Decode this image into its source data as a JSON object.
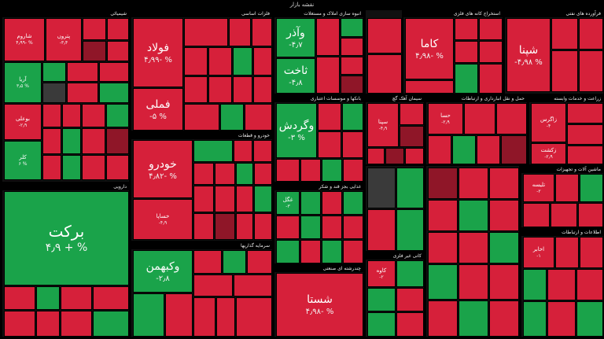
{
  "page_title": "نقشه بازار",
  "colors": {
    "red": "#d6203a",
    "dark_red": "#8f1628",
    "green": "#1aa34a",
    "light_green": "#2fbf5d",
    "gray": "#3a3a3a"
  },
  "sectors": [
    {
      "key": "s1",
      "label": "شیمیائی",
      "tiles": [
        {
          "name": "شاروم",
          "pct": "۴٫۹۹- %",
          "c": "red"
        },
        {
          "name": "پتروں",
          "pct": "-۳٫۴",
          "c": "red"
        },
        {
          "name": "آریا",
          "pct": "۳٫۵ %",
          "c": "green"
        },
        {
          "name": "بوعلی",
          "pct": "-۲٫۹",
          "c": "red"
        },
        {
          "name": "کلر",
          "pct": "۶ %",
          "c": "green"
        }
      ]
    },
    {
      "key": "s2",
      "label": "دارویی",
      "tiles": [
        {
          "name": "برکت",
          "pct": "۴٫۹ + %",
          "c": "green"
        }
      ]
    },
    {
      "key": "s3",
      "label": "فلزات اساسی",
      "tiles": [
        {
          "name": "فولاد",
          "pct": "۴٫۹۹- %",
          "c": "red"
        },
        {
          "name": "فملی",
          "pct": "-۵ %",
          "c": "red"
        }
      ]
    },
    {
      "key": "s4",
      "label": "خودرو و قطعات",
      "tiles": [
        {
          "name": "خودرو",
          "pct": "۴٫۸۲- %",
          "c": "red"
        },
        {
          "name": "خساپا",
          "pct": "-۴٫۹",
          "c": "red"
        }
      ]
    },
    {
      "key": "s5",
      "label": "سرمایه گذاریها",
      "tiles": [
        {
          "name": "وکبهمن",
          "pct": "-۲٫۸",
          "c": "green"
        }
      ]
    },
    {
      "key": "s6",
      "label": "انبوه سازی املاک و مستغلات",
      "tiles": [
        {
          "name": "وآذر",
          "pct": "-۴٫۷",
          "c": "green"
        },
        {
          "name": "ثاخت",
          "pct": "-۴٫۸",
          "c": "green"
        }
      ]
    },
    {
      "key": "s7",
      "label": "بانکها و موسسات اعتباری",
      "tiles": [
        {
          "name": "وگردش",
          "pct": "-۳ %",
          "c": "green"
        }
      ]
    },
    {
      "key": "s8",
      "label": "چندرشته ای صنعتی",
      "tiles": [
        {
          "name": "شستا",
          "pct": "۴٫۹۸- %",
          "c": "red"
        }
      ]
    },
    {
      "key": "s9",
      "label": "استخراج کانه های فلزی",
      "tiles": [
        {
          "name": "کاما",
          "pct": "۴٫۹۸- %",
          "c": "red"
        }
      ]
    },
    {
      "key": "s10",
      "label": "فرآورده های نفتی",
      "tiles": [
        {
          "name": "شپنا",
          "pct": "-۴٫۹۸ %",
          "c": "red"
        }
      ]
    },
    {
      "key": "s11",
      "label": "سیمان آهک گچ",
      "tiles": [
        {
          "name": "سپنا",
          "pct": "-۴٫۹",
          "c": "red"
        }
      ]
    },
    {
      "key": "s12",
      "label": "حمل و نقل انبارداری و ارتباطات",
      "tiles": [
        {
          "name": "حسا",
          "pct": "-۲٫۹",
          "c": "red"
        }
      ]
    },
    {
      "key": "s13",
      "label": "زراعت و خدمات وابسته",
      "tiles": [
        {
          "name": "زکشت",
          "pct": "-۲٫۹",
          "c": "red"
        },
        {
          "name": "زاگرس",
          "pct": "-۴",
          "c": "red"
        }
      ]
    },
    {
      "key": "s14",
      "label": "غذایی بجز قند و شکر",
      "tiles": [
        {
          "name": "غگل",
          "pct": "-۳",
          "c": "green"
        }
      ]
    },
    {
      "key": "s15",
      "label": "کانی غیر فلزی",
      "tiles": [
        {
          "name": "کاوه",
          "pct": "-۲",
          "c": "red"
        }
      ]
    },
    {
      "key": "s16",
      "label": "ماشین آلات و تجهیزات",
      "tiles": [
        {
          "name": "تلیسه",
          "pct": "-۲",
          "c": "red"
        }
      ]
    },
    {
      "key": "s17",
      "label": "اطلاعات و ارتباطات",
      "tiles": [
        {
          "name": "اخابر",
          "pct": "-۱",
          "c": "red"
        }
      ]
    }
  ]
}
